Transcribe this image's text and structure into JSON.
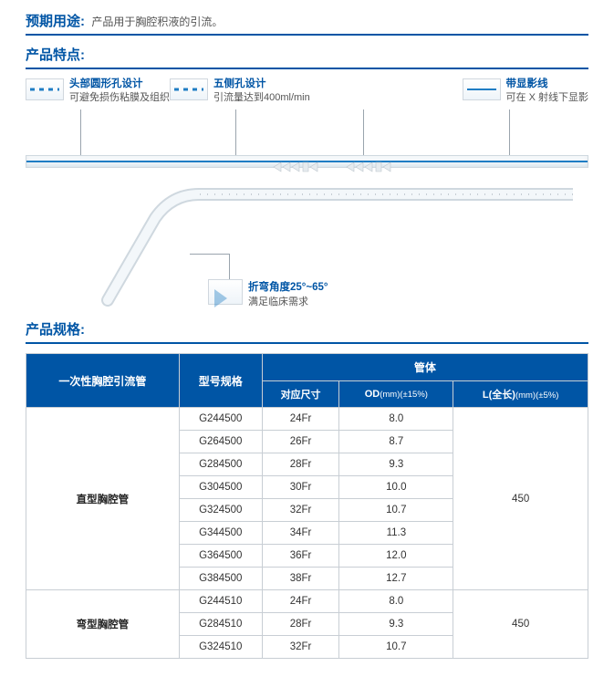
{
  "intro": {
    "label": "预期用途:",
    "desc": "产品用于胸腔积液的引流。"
  },
  "features": {
    "title": "产品特点:",
    "items": [
      {
        "title": "头部圆形孔设计",
        "sub": "可避免损伤粘膜及组织"
      },
      {
        "title": "五侧孔设计",
        "sub": "引流量达到400ml/min"
      },
      {
        "title": "带显影线",
        "sub": "可在 X 射线下显影"
      }
    ],
    "angle": {
      "title": "折弯角度25°~65°",
      "sub": "满足临床需求"
    }
  },
  "specs": {
    "title": "产品规格:",
    "header": {
      "col1": "一次性胸腔引流管",
      "col2": "型号规格",
      "group": "管体",
      "sub1": "对应尺寸",
      "sub2_main": "OD",
      "sub2_unit": "(mm)(±15%)",
      "sub3_main": "L(全长)",
      "sub3_unit": "(mm)(±5%)"
    },
    "groups": [
      {
        "category": "直型胸腔管",
        "length": "450",
        "rows": [
          {
            "model": "G244500",
            "size": "24Fr",
            "od": "8.0"
          },
          {
            "model": "G264500",
            "size": "26Fr",
            "od": "8.7"
          },
          {
            "model": "G284500",
            "size": "28Fr",
            "od": "9.3"
          },
          {
            "model": "G304500",
            "size": "30Fr",
            "od": "10.0"
          },
          {
            "model": "G324500",
            "size": "32Fr",
            "od": "10.7"
          },
          {
            "model": "G344500",
            "size": "34Fr",
            "od": "11.3"
          },
          {
            "model": "G364500",
            "size": "36Fr",
            "od": "12.0"
          },
          {
            "model": "G384500",
            "size": "38Fr",
            "od": "12.7"
          }
        ]
      },
      {
        "category": "弯型胸腔管",
        "length": "450",
        "rows": [
          {
            "model": "G244510",
            "size": "24Fr",
            "od": "8.0"
          },
          {
            "model": "G284510",
            "size": "28Fr",
            "od": "9.3"
          },
          {
            "model": "G324510",
            "size": "32Fr",
            "od": "10.7"
          }
        ]
      }
    ]
  },
  "colors": {
    "brand": "#0055a5",
    "accent": "#1f7dc4",
    "border": "#c8ced4"
  }
}
